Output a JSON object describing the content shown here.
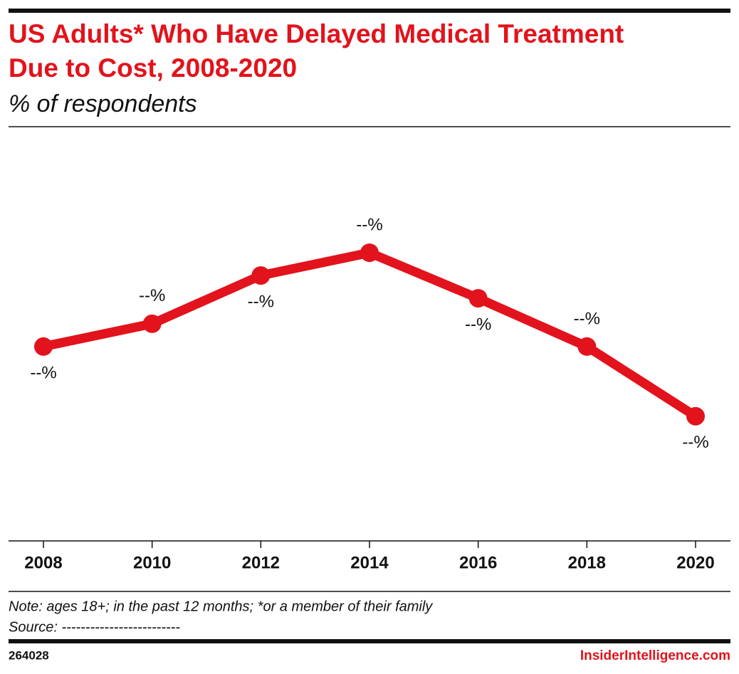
{
  "chart_data": {
    "type": "line",
    "title": [
      "US Adults* Who Have Delayed Medical Treatment",
      "Due to Cost, 2008-2020"
    ],
    "subtitle": "% of respondents",
    "categories": [
      "2008",
      "2010",
      "2012",
      "2014",
      "2016",
      "2018",
      "2020"
    ],
    "series": [
      {
        "name": "US Adults",
        "color": "#e2131c",
        "values": [
          24.5,
          26.2,
          29.8,
          31.5,
          28.1,
          24.5,
          19.3
        ],
        "value_labels": [
          "--%",
          "--%",
          "--%",
          "--%",
          "--%",
          "--%",
          "--%"
        ]
      }
    ],
    "ylim": [
      10,
      40
    ],
    "note": "Note: ages 18+; in the past 12 months; *or a member of their family",
    "source": "Source: -------------------------",
    "chart_id": "264028",
    "brand": "InsiderIntelligence.com"
  }
}
